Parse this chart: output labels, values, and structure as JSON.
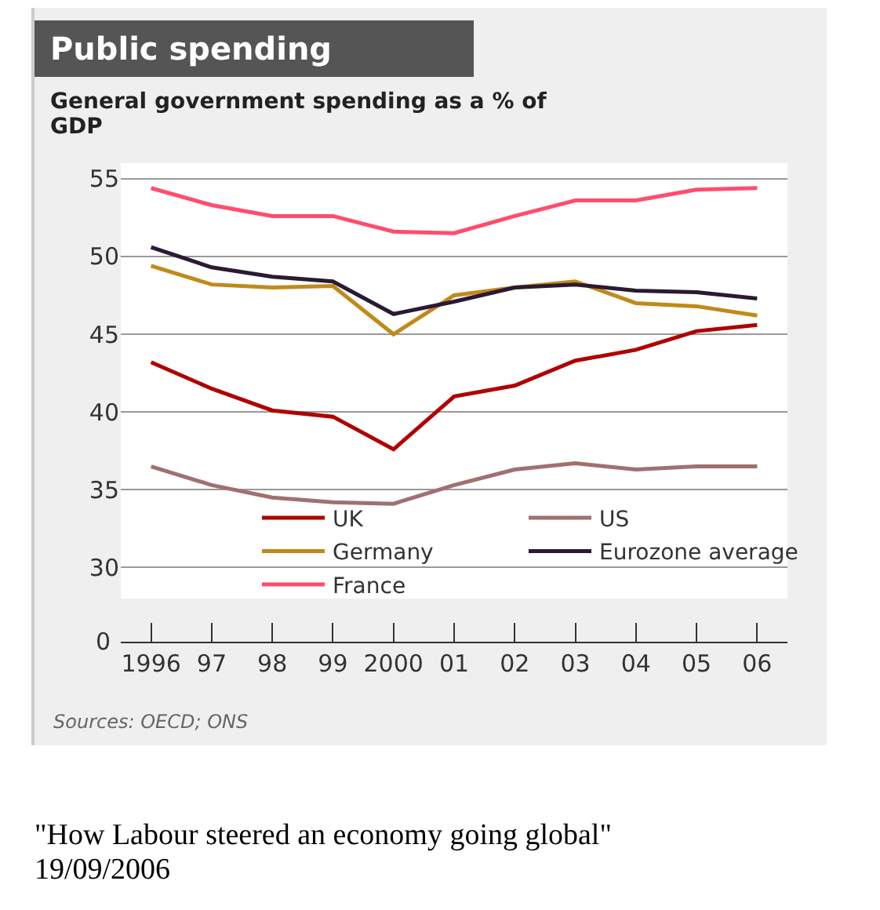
{
  "chart_data": {
    "type": "line",
    "title": "Public spending",
    "subtitle": "General government spending as a % of GDP",
    "categories": [
      "1996",
      "97",
      "98",
      "99",
      "2000",
      "01",
      "02",
      "03",
      "04",
      "05",
      "06"
    ],
    "series": [
      {
        "name": "UK",
        "color": "#b00000",
        "values": [
          43.2,
          41.5,
          40.1,
          39.7,
          37.6,
          41.0,
          41.7,
          43.3,
          44.0,
          45.2,
          45.6
        ]
      },
      {
        "name": "Germany",
        "color": "#c08a1a",
        "values": [
          49.4,
          48.2,
          48.0,
          48.1,
          45.0,
          47.5,
          48.0,
          48.4,
          47.0,
          46.8,
          46.2
        ]
      },
      {
        "name": "France",
        "color": "#ff4d6d",
        "values": [
          54.4,
          53.3,
          52.6,
          52.6,
          51.6,
          51.5,
          52.6,
          53.6,
          53.6,
          54.3,
          54.4
        ]
      },
      {
        "name": "US",
        "color": "#a07070",
        "values": [
          36.5,
          35.3,
          34.5,
          34.2,
          34.1,
          35.3,
          36.3,
          36.7,
          36.3,
          36.5,
          36.5
        ]
      },
      {
        "name": "Eurozone average",
        "color": "#2a1a33",
        "values": [
          50.6,
          49.3,
          48.7,
          48.4,
          46.3,
          47.1,
          48.0,
          48.2,
          47.8,
          47.7,
          47.3
        ]
      }
    ],
    "ylim": [
      28,
      56
    ],
    "yticks": [
      30,
      35,
      40,
      45,
      50,
      55
    ],
    "grid": "y",
    "legend": "bottom",
    "marker": "none",
    "line_style": "solid",
    "annotations": [
      "0",
      "Sources: OECD; ONS",
      "\"How Labour steered an economy going global\"",
      "19/09/2006"
    ]
  }
}
